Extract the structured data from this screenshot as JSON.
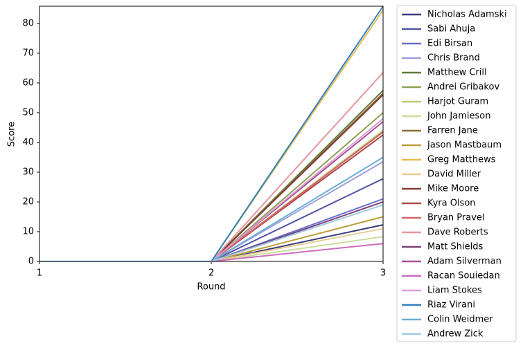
{
  "chart_data": {
    "type": "line",
    "xlabel": "Round",
    "ylabel": "Score",
    "x": [
      1,
      2,
      3
    ],
    "xlim": [
      1,
      3
    ],
    "xticks": [
      1,
      2,
      3
    ],
    "ylim": [
      0,
      85.8
    ],
    "yticks": [
      0,
      10,
      20,
      30,
      40,
      50,
      60,
      70,
      80
    ],
    "legend": "outside-right",
    "series": [
      {
        "name": "Nicholas Adamski",
        "color": "#393b79",
        "values": [
          0,
          0,
          12.3
        ]
      },
      {
        "name": "Sabi Ahuja",
        "color": "#5254a3",
        "values": [
          0,
          0,
          27.8
        ]
      },
      {
        "name": "Edi Birsan",
        "color": "#6b6ecf",
        "values": [
          0,
          0,
          21
        ]
      },
      {
        "name": "Chris Brand",
        "color": "#9c9ede",
        "values": [
          0,
          0,
          33.5
        ]
      },
      {
        "name": "Matthew Crill",
        "color": "#637939",
        "values": [
          0,
          0,
          57.5
        ]
      },
      {
        "name": "Andrei Gribakov",
        "color": "#8ca252",
        "values": [
          0,
          0,
          50
        ]
      },
      {
        "name": "Harjot Guram",
        "color": "#b5cf6b",
        "values": [
          0,
          0,
          44
        ]
      },
      {
        "name": "John Jamieson",
        "color": "#cedb9c",
        "values": [
          0,
          0,
          8.3
        ]
      },
      {
        "name": "Farren Jane",
        "color": "#8c6d31",
        "values": [
          0,
          0,
          56.5
        ]
      },
      {
        "name": "Jason Mastbaum",
        "color": "#bd9e39",
        "values": [
          0,
          0,
          15
        ]
      },
      {
        "name": "Greg Matthews",
        "color": "#e7ba52",
        "values": [
          0,
          0,
          84.5
        ]
      },
      {
        "name": "David Miller",
        "color": "#e7cb94",
        "values": [
          0,
          0,
          11
        ]
      },
      {
        "name": "Mike Moore",
        "color": "#843c39",
        "values": [
          0,
          0,
          56
        ]
      },
      {
        "name": "Kyra Olson",
        "color": "#ad494a",
        "values": [
          0,
          0,
          42.5
        ]
      },
      {
        "name": "Bryan Pravel",
        "color": "#d6616b",
        "values": [
          0,
          0,
          43.5
        ]
      },
      {
        "name": "Dave Roberts",
        "color": "#e7969c",
        "values": [
          0,
          0,
          63.5
        ]
      },
      {
        "name": "Matt Shields",
        "color": "#7b4173",
        "values": [
          0,
          0,
          20
        ]
      },
      {
        "name": "Adam Silverman",
        "color": "#a55194",
        "values": [
          0,
          0,
          47
        ]
      },
      {
        "name": "Racan Souiedan",
        "color": "#ce6dbd",
        "values": [
          0,
          0,
          6
        ]
      },
      {
        "name": "Liam Stokes",
        "color": "#de9ed6",
        "values": [
          0,
          0,
          48
        ]
      },
      {
        "name": "Riaz Virani",
        "color": "#3182bd",
        "values": [
          0,
          0,
          85.8
        ]
      },
      {
        "name": "Colin Weidmer",
        "color": "#6baed6",
        "values": [
          0,
          0,
          35
        ]
      },
      {
        "name": "Andrew Zick",
        "color": "#9ecae1",
        "values": [
          0,
          0,
          19
        ]
      }
    ]
  }
}
